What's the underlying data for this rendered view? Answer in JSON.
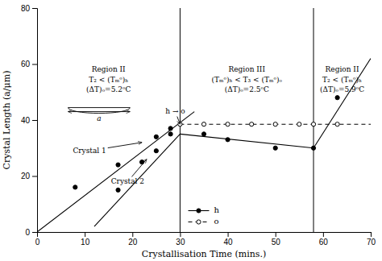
{
  "chart_data": {
    "type": "line",
    "xlabel": "Crystallisation Time (mins.)",
    "ylabel": "Crystal Length (a/μm)",
    "xlim": [
      0,
      70
    ],
    "ylim": [
      0,
      80
    ],
    "xticks": [
      0,
      10,
      20,
      30,
      40,
      50,
      60,
      70
    ],
    "yticks": [
      0,
      20,
      40,
      60,
      80
    ],
    "grid": false,
    "legend": "lower center",
    "color": "#000000",
    "vlines": [
      30,
      58
    ],
    "series": [
      {
        "x": [
          0,
          33
        ],
        "values": [
          0,
          43
        ],
        "line_style": "solid"
      },
      {
        "x": [
          12,
          30
        ],
        "values": [
          2,
          35
        ],
        "line_style": "solid"
      },
      {
        "x": [
          30,
          58
        ],
        "values": [
          35,
          30
        ],
        "line_style": "solid"
      },
      {
        "x": [
          58,
          70
        ],
        "values": [
          30,
          62
        ],
        "line_style": "solid"
      },
      {
        "x": [
          30,
          70
        ],
        "values": [
          38.5,
          38.5
        ],
        "line_style": "dashed"
      },
      {
        "name": "h",
        "type": "scatter",
        "marker": "filled",
        "line_style": "solid",
        "x": [
          8,
          17,
          25,
          28,
          17,
          22,
          25,
          28,
          35,
          40,
          50,
          58,
          63
        ],
        "values": [
          16,
          24,
          34,
          37,
          15,
          25,
          29,
          35,
          35,
          33,
          30,
          30,
          48
        ]
      },
      {
        "name": "o",
        "type": "scatter",
        "marker": "open",
        "line_style": "dashed",
        "x": [
          30,
          35,
          40,
          45,
          50,
          55,
          58,
          63
        ],
        "values": [
          38.5,
          38.5,
          38.5,
          38.5,
          38.5,
          38.5,
          38.5,
          38.5
        ]
      }
    ],
    "annotations": [
      {
        "text": "Region II",
        "x": 15,
        "y": 59
      },
      {
        "text": "T₂ < (Tₘᵒ)ₕ",
        "x": 15,
        "y": 55.5
      },
      {
        "text": "(ΔT)ₒ=5.2ᵒC",
        "x": 15,
        "y": 52
      },
      {
        "text": "Region III",
        "x": 44,
        "y": 59
      },
      {
        "text": "(Tₘᵒ)ₕ < T₃ < (Tₘᵒ)ₒ",
        "x": 44,
        "y": 55.5
      },
      {
        "text": "(ΔT)ₒ=2.5ᵒC",
        "x": 44,
        "y": 52
      },
      {
        "text": "Region II",
        "x": 64,
        "y": 59
      },
      {
        "text": "T₂ < (Tₘᵒ)ₕ",
        "x": 64,
        "y": 55.5
      },
      {
        "text": "(ΔT)ₒ=5.9ᵒC",
        "x": 64,
        "y": 52
      },
      {
        "text": "Crystal 1",
        "x": 11,
        "y": 29,
        "arrow_to": [
          22,
          32
        ]
      },
      {
        "text": "Crystal 2",
        "x": 19,
        "y": 18,
        "arrow_to": [
          23,
          26
        ]
      },
      {
        "text": "h → o",
        "x": 29,
        "y": 43,
        "arrow_to": [
          30,
          38.5
        ]
      },
      {
        "text": "a",
        "x": 13,
        "y": 41.5,
        "arrow_from": [
          6.5,
          43
        ],
        "arrow_to": [
          19.5,
          43
        ]
      }
    ]
  }
}
